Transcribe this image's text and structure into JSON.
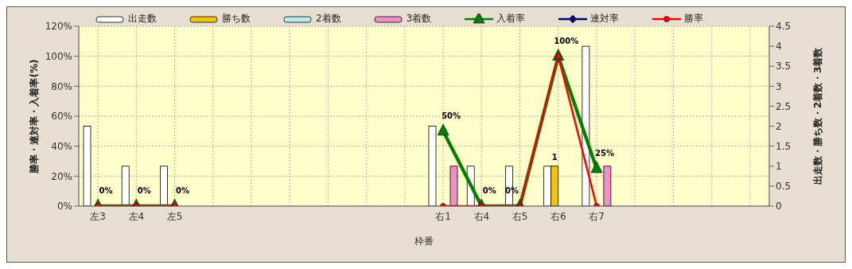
{
  "chart_data": {
    "type": "bar",
    "xlabel": "枠番",
    "ylabel": "勝率・連対率・入着率(%)",
    "y2label": "出走数・勝ち数・2着数・3着数",
    "categories": [
      "左3",
      "左4",
      "左5",
      null,
      null,
      null,
      null,
      null,
      null,
      "右1",
      "右4",
      "右5",
      "右6",
      "右7",
      null,
      null,
      null,
      null
    ],
    "series": [
      {
        "name": "出走数",
        "axis": "y2",
        "color": "#ffffff",
        "values": [
          2,
          1,
          1,
          null,
          null,
          null,
          null,
          null,
          null,
          2,
          1,
          1,
          1,
          4,
          null,
          null,
          null,
          null
        ]
      },
      {
        "name": "勝ち数",
        "axis": "y2",
        "color": "#f5c400",
        "values": [
          0,
          0,
          0,
          null,
          null,
          null,
          null,
          null,
          null,
          0,
          0,
          0,
          1,
          0,
          null,
          null,
          null,
          null
        ],
        "value_labels": [
          null,
          null,
          null,
          null,
          null,
          null,
          null,
          null,
          null,
          null,
          null,
          null,
          "1",
          null,
          null,
          null,
          null,
          null
        ]
      },
      {
        "name": "2着数",
        "axis": "y2",
        "color": "#b8ecf0",
        "values": [
          0,
          0,
          0,
          null,
          null,
          null,
          null,
          null,
          null,
          0,
          0,
          0,
          0,
          0,
          null,
          null,
          null,
          null
        ]
      },
      {
        "name": "3着数",
        "axis": "y2",
        "color": "#f090c8",
        "values": [
          0,
          0,
          0,
          null,
          null,
          null,
          null,
          null,
          null,
          1,
          0,
          0,
          0,
          1,
          null,
          null,
          null,
          null
        ]
      },
      {
        "name": "入着率",
        "type": "line",
        "marker": "triangle",
        "color": "#008000",
        "values": [
          0,
          0,
          0,
          null,
          null,
          null,
          null,
          null,
          null,
          50,
          0,
          0,
          100,
          25,
          null,
          null,
          null,
          null
        ],
        "value_labels": [
          "0%",
          "0%",
          "0%",
          null,
          null,
          null,
          null,
          null,
          null,
          "50%",
          "0%",
          "0%",
          "100%",
          "25%",
          null,
          null,
          null,
          null
        ]
      },
      {
        "name": "連対率",
        "type": "line",
        "marker": "diamond",
        "color": "#000080",
        "values": [
          null,
          null,
          null,
          null,
          null,
          null,
          null,
          null,
          null,
          null,
          null,
          null,
          null,
          null,
          null,
          null,
          null,
          null
        ]
      },
      {
        "name": "勝率",
        "type": "line",
        "marker": "circle",
        "color": "#ff0000",
        "values": [
          0,
          0,
          0,
          null,
          null,
          null,
          null,
          null,
          null,
          0,
          0,
          0,
          100,
          0,
          null,
          null,
          null,
          null
        ]
      }
    ],
    "ylim": [
      0,
      120
    ],
    "yticks": [
      {
        "value": 0,
        "label": "0%"
      },
      {
        "value": 20,
        "label": "20%"
      },
      {
        "value": 40,
        "label": "40%"
      },
      {
        "value": 60,
        "label": "60%"
      },
      {
        "value": 80,
        "label": "80%"
      },
      {
        "value": 100,
        "label": "100%"
      },
      {
        "value": 120,
        "label": "120%"
      }
    ],
    "y2lim": [
      0,
      4.5
    ],
    "y2ticks": [
      0,
      0.5,
      1,
      1.5,
      2,
      2.5,
      3,
      3.5,
      4,
      4.5
    ],
    "grid": true,
    "legend": "top"
  }
}
